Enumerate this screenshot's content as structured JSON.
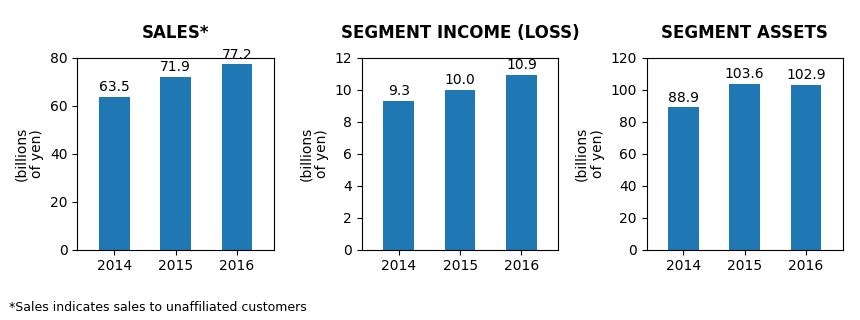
{
  "chart_data": [
    {
      "type": "bar",
      "title": "SALES*",
      "categories": [
        "2014",
        "2015",
        "2016"
      ],
      "values": [
        63.5,
        71.9,
        77.2
      ],
      "ylim": [
        0,
        80
      ],
      "yticks": [
        0,
        20,
        40,
        60,
        80
      ],
      "ylabel": "(billions\nof yen)",
      "data_labels": true,
      "annotations": [
        "*Sales indicates sales to unaffiliated customers"
      ]
    },
    {
      "type": "bar",
      "title": "SEGMENT INCOME (LOSS)",
      "categories": [
        "2014",
        "2015",
        "2016"
      ],
      "values": [
        9.3,
        10.0,
        10.9
      ],
      "value_labels": [
        "9.3",
        "10.0",
        "10.9"
      ],
      "ylim": [
        0,
        12
      ],
      "yticks": [
        0,
        2,
        4,
        6,
        8,
        10,
        12
      ],
      "ylabel": "(billions\nof yen)",
      "data_labels": true
    },
    {
      "type": "bar",
      "title": "SEGMENT ASSETS",
      "categories": [
        "2014",
        "2015",
        "2016"
      ],
      "values": [
        88.9,
        103.6,
        102.9
      ],
      "ylim": [
        0,
        120
      ],
      "yticks": [
        0,
        20,
        40,
        60,
        80,
        100,
        120
      ],
      "ylabel": "(billions\nof yen)",
      "data_labels": true
    }
  ]
}
